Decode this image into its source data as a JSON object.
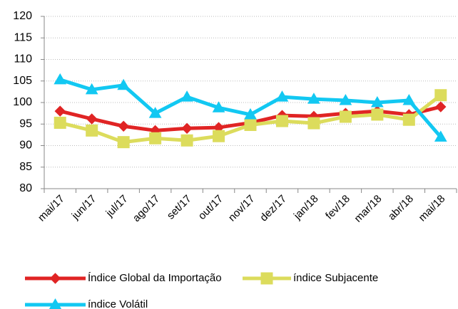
{
  "chart_data": {
    "type": "line",
    "categories": [
      "mai/17",
      "jun/17",
      "jul/17",
      "ago/17",
      "set/17",
      "out/17",
      "nov/17",
      "dez/17",
      "jan/18",
      "fev/18",
      "mar/18",
      "abr/18",
      "mai/18"
    ],
    "series": [
      {
        "name": "Índice Global da Importação",
        "color": "#e02424",
        "marker": "diamond",
        "values": [
          98,
          96.2,
          94.5,
          93.5,
          94,
          94.2,
          95.3,
          97,
          96.8,
          97.5,
          98,
          97.2,
          99
        ]
      },
      {
        "name": "índice Subjacente",
        "color": "#dcdc5c",
        "marker": "square",
        "values": [
          95.3,
          93.5,
          90.8,
          91.7,
          91.2,
          92.2,
          94.8,
          95.7,
          95.2,
          96.7,
          97.2,
          96,
          101.7
        ]
      },
      {
        "name": "índice Volátil",
        "color": "#12c8f2",
        "marker": "triangle",
        "values": [
          105.3,
          103,
          104,
          97.5,
          101.3,
          98.8,
          97.2,
          101.3,
          100.8,
          100.5,
          100,
          100.5,
          92
        ]
      }
    ],
    "ylim": [
      80,
      120
    ],
    "yticks": [
      80,
      85,
      90,
      95,
      100,
      105,
      110,
      115,
      120
    ],
    "grid": true
  }
}
